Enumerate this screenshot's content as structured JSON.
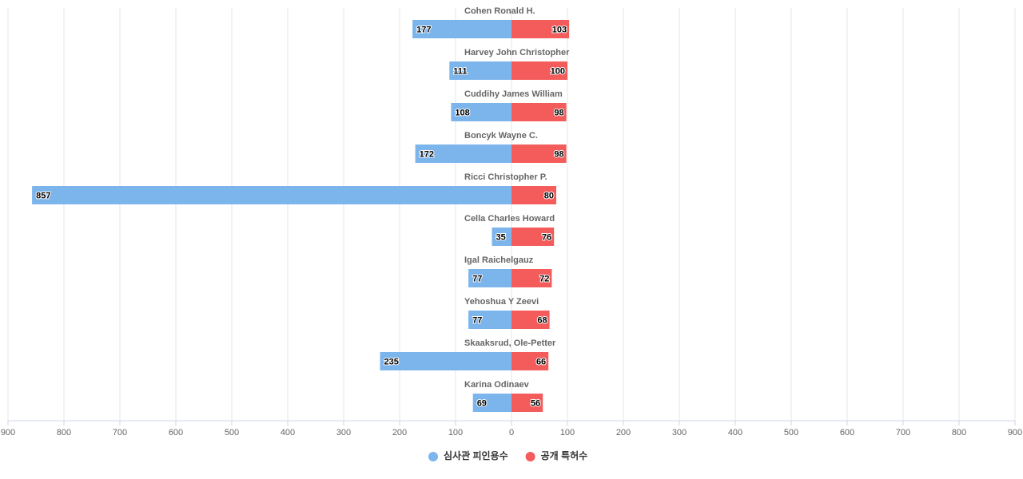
{
  "chart_data": {
    "type": "butterfly-bar",
    "categories": [
      "Cohen Ronald H.",
      "Harvey John Christopher",
      "Cuddihy James William",
      "Boncyk Wayne C.",
      "Ricci Christopher P.",
      "Cella Charles Howard",
      "Igal Raichelgauz",
      "Yehoshua Y Zeevi",
      "Skaaksrud, Ole-Petter",
      "Karina Odinaev"
    ],
    "series": [
      {
        "name": "심사관 피인용수",
        "color": "#7cb5ec",
        "values": [
          -177,
          -111,
          -108,
          -172,
          -857,
          -35,
          -77,
          -77,
          -235,
          -69
        ],
        "value_labels": [
          "177",
          "111",
          "108",
          "172",
          "857",
          "35",
          "77",
          "77",
          "235",
          "69"
        ]
      },
      {
        "name": "공개 특허수",
        "color": "#f45b5b",
        "values": [
          103,
          100,
          98,
          98,
          80,
          76,
          72,
          68,
          66,
          56
        ]
      }
    ],
    "xlim": [
      -900,
      900
    ],
    "xticks": [
      {
        "value": -900,
        "label": "900"
      },
      {
        "value": -800,
        "label": "800"
      },
      {
        "value": -700,
        "label": "700"
      },
      {
        "value": -600,
        "label": "600"
      },
      {
        "value": -500,
        "label": "500"
      },
      {
        "value": -400,
        "label": "400"
      },
      {
        "value": -300,
        "label": "300"
      },
      {
        "value": -200,
        "label": "200"
      },
      {
        "value": -100,
        "label": "100"
      },
      0,
      100,
      200,
      300,
      400,
      500,
      600,
      700,
      800,
      900
    ],
    "grid": true
  }
}
